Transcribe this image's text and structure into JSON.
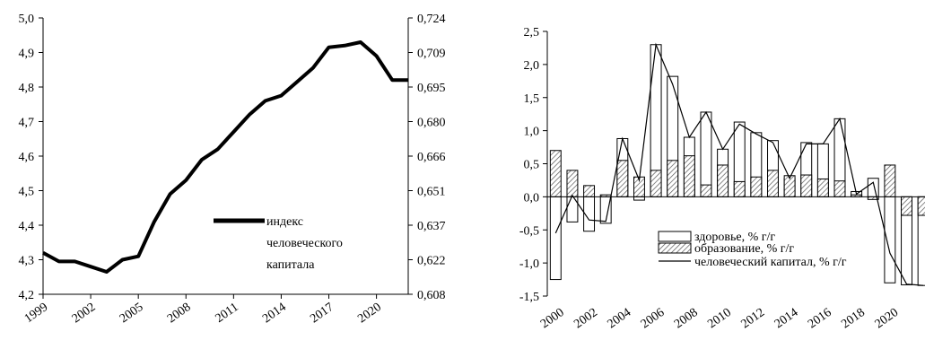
{
  "chart_data": [
    {
      "type": "line",
      "title": "",
      "xlabel": "",
      "ylabel": "",
      "x": [
        1999,
        2000,
        2001,
        2002,
        2003,
        2004,
        2005,
        2006,
        2007,
        2008,
        2009,
        2010,
        2011,
        2012,
        2013,
        2014,
        2015,
        2016,
        2017,
        2018,
        2019,
        2020,
        2021,
        2022
      ],
      "x_tick_labels": [
        "1999",
        "2002",
        "2005",
        "2008",
        "2011",
        "2014",
        "2017",
        "2020"
      ],
      "y_left": {
        "ylim": [
          4.2,
          5.0
        ],
        "tick_labels": [
          "4,2",
          "4,3",
          "4,4",
          "4,5",
          "4,6",
          "4,7",
          "4,8",
          "4,9",
          "5,0"
        ]
      },
      "y_right": {
        "ylim": [
          0.608,
          0.724
        ],
        "tick_labels": [
          "0,608",
          "0,622",
          "0,637",
          "0,651",
          "0,666",
          "0,680",
          "0,695",
          "0,709",
          "0,724"
        ]
      },
      "series": [
        {
          "name": "индекс человеческого капитала",
          "axis": "left",
          "values": [
            4.32,
            4.295,
            4.295,
            4.28,
            4.265,
            4.3,
            4.31,
            4.41,
            4.49,
            4.53,
            4.59,
            4.62,
            4.67,
            4.72,
            4.76,
            4.775,
            4.815,
            4.855,
            4.915,
            4.92,
            4.93,
            4.89,
            4.82,
            4.82
          ]
        }
      ],
      "legend": {
        "position": "lower-right",
        "lines": [
          "индекс",
          "человеческого",
          "капитала"
        ]
      },
      "grid": false
    },
    {
      "type": "bar",
      "title": "",
      "xlabel": "",
      "ylabel": "",
      "x": [
        2000,
        2001,
        2002,
        2003,
        2004,
        2005,
        2006,
        2007,
        2008,
        2009,
        2010,
        2011,
        2012,
        2013,
        2014,
        2015,
        2016,
        2017,
        2018,
        2019,
        2020,
        2021,
        2022
      ],
      "x_tick_labels": [
        "2000",
        "2002",
        "2004",
        "2006",
        "2008",
        "2010",
        "2012",
        "2014",
        "2016",
        "2018",
        "2020"
      ],
      "ylim": [
        -1.5,
        2.5
      ],
      "y_tick_labels": [
        "2,5",
        "2,0",
        "1,5",
        "1,0",
        "0,5",
        "0,0",
        "-0,5",
        "-1,0",
        "-1,5"
      ],
      "series": [
        {
          "name": "здоровье, % г/г",
          "values": [
            -1.25,
            -0.38,
            -0.52,
            -0.4,
            0.88,
            -0.05,
            2.3,
            1.82,
            0.9,
            1.28,
            0.72,
            1.13,
            0.97,
            0.85,
            0.28,
            0.82,
            0.8,
            1.18,
            0.08,
            0.28,
            -1.3,
            -1.33,
            -1.34
          ]
        },
        {
          "name": "образование, % г/г",
          "values": [
            0.7,
            0.4,
            0.17,
            0.03,
            0.55,
            0.3,
            0.4,
            0.55,
            0.62,
            0.18,
            0.48,
            0.23,
            0.3,
            0.4,
            0.32,
            0.33,
            0.27,
            0.24,
            0.03,
            -0.04,
            0.48,
            -0.28,
            -0.28
          ]
        },
        {
          "name": "человеческий капитал, % г/г",
          "values": [
            -0.55,
            0.02,
            -0.35,
            -0.37,
            0.88,
            0.25,
            2.3,
            1.7,
            0.9,
            1.28,
            0.72,
            1.1,
            0.95,
            0.82,
            0.28,
            0.8,
            0.8,
            1.18,
            0.04,
            0.22,
            -0.85,
            -1.32,
            -1.34
          ]
        }
      ],
      "legend": {
        "position": "lower-right"
      },
      "grid": false
    }
  ]
}
